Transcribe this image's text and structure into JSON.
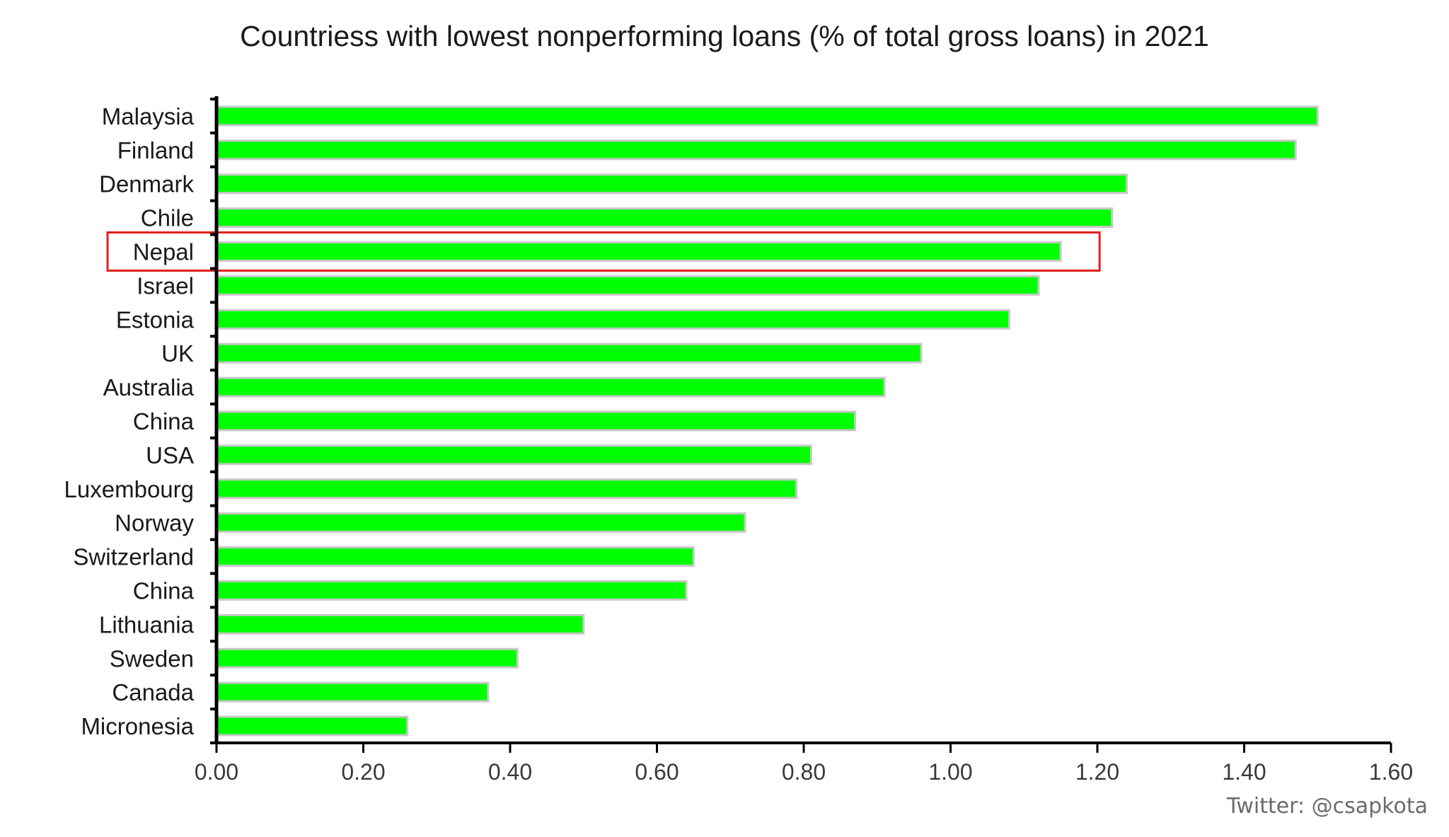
{
  "chart_data": {
    "type": "bar",
    "orientation": "horizontal",
    "title": "Countriess with lowest nonperforming loans (% of total gross loans) in 2021",
    "xlabel": "",
    "ylabel": "",
    "categories": [
      "Malaysia",
      "Finland",
      "Denmark",
      "Chile",
      "Nepal",
      "Israel",
      "Estonia",
      "UK",
      "Australia",
      "China",
      "USA",
      "Luxembourg",
      "Norway",
      "Switzerland",
      "China",
      "Lithuania",
      "Sweden",
      "Canada",
      "Micronesia"
    ],
    "values": [
      1.5,
      1.47,
      1.24,
      1.22,
      1.15,
      1.12,
      1.08,
      0.96,
      0.91,
      0.87,
      0.81,
      0.79,
      0.72,
      0.65,
      0.64,
      0.5,
      0.41,
      0.37,
      0.26
    ],
    "xlim": [
      0,
      1.6
    ],
    "xticks": [
      "0.00",
      "0.20",
      "0.40",
      "0.60",
      "0.80",
      "1.00",
      "1.20",
      "1.40",
      "1.60"
    ],
    "grid": false,
    "legend": "none",
    "highlighted_category": "Nepal",
    "colors": {
      "bar": "#00ff00",
      "bar_outline": "#c8c8c8",
      "highlight_box": "#e0201b",
      "axis": "#000000",
      "text": "#1a1a1a"
    }
  },
  "credit": "Twitter: @csapkota"
}
